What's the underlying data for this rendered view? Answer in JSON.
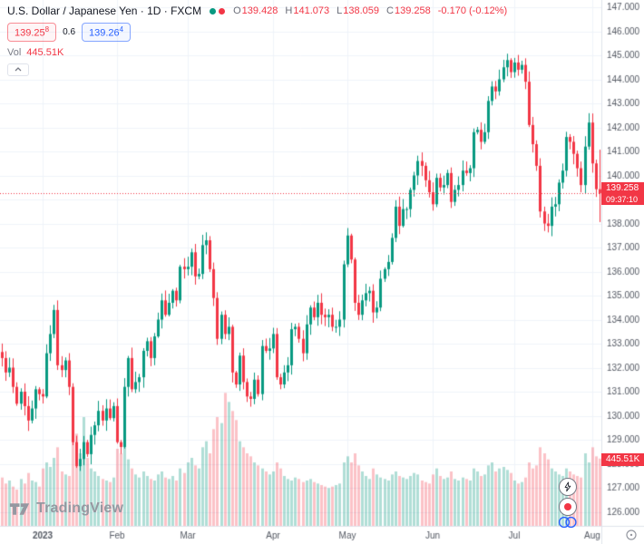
{
  "legend": {
    "title": "U.S. Dollar / Japanese Yen · 1D · FXCM",
    "ohlc": [
      {
        "label": "O",
        "value": "139.428"
      },
      {
        "label": "H",
        "value": "141.073"
      },
      {
        "label": "L",
        "value": "138.059"
      },
      {
        "label": "C",
        "value": "139.258"
      }
    ],
    "change": "-0.170 (-0.12%)"
  },
  "quote": {
    "sell": "139.25",
    "sell_sup": "8",
    "spread": "0.6",
    "buy": "139.26",
    "buy_sup": "4"
  },
  "volume_row": {
    "label": "Vol",
    "value": "445.51K"
  },
  "axis": {
    "price_label": "139.258",
    "countdown": "09:37:10",
    "volume_label": "445.51K"
  },
  "watermark": {
    "text": "TradingView"
  },
  "chart_data": {
    "type": "candlestick",
    "symbol": "USD/JPY",
    "timeframe": "1D",
    "volume_overlay": true,
    "grid": true,
    "y_axis": {
      "min": 126,
      "max": 147,
      "step": 1
    },
    "y_tick_labels": [
      "147.000",
      "146.000",
      "145.000",
      "144.000",
      "143.000",
      "142.000",
      "141.000",
      "140.000",
      "139.000",
      "138.000",
      "137.000",
      "136.000",
      "135.000",
      "134.000",
      "133.000",
      "132.000",
      "131.000",
      "130.000",
      "129.000",
      "128.000",
      "127.000",
      "126.000"
    ],
    "x_ticks": [
      {
        "label": "2023",
        "i": 11
      },
      {
        "label": "Feb",
        "i": 31
      },
      {
        "label": "Mar",
        "i": 50
      },
      {
        "label": "Apr",
        "i": 73
      },
      {
        "label": "May",
        "i": 93
      },
      {
        "label": "Jun",
        "i": 116
      },
      {
        "label": "Jul",
        "i": 138
      },
      {
        "label": "Aug",
        "i": 159
      }
    ],
    "last_price": 139.258,
    "last_candle": {
      "o": 139.428,
      "h": 141.073,
      "l": 138.059,
      "c": 139.258,
      "v": 445.51
    },
    "volume_axis_max_k": 900,
    "colors": {
      "up": "#089981",
      "down": "#F23645"
    },
    "candles": [
      [
        132.4,
        320
      ],
      [
        131.8,
        280
      ],
      [
        132.0,
        300
      ],
      [
        131.2,
        260
      ],
      [
        130.5,
        240
      ],
      [
        131.0,
        310
      ],
      [
        130.4,
        280
      ],
      [
        129.8,
        350
      ],
      [
        130.3,
        300
      ],
      [
        131.1,
        290
      ],
      [
        130.9,
        260
      ],
      [
        130.8,
        380
      ],
      [
        132.6,
        420
      ],
      [
        133.4,
        390
      ],
      [
        134.4,
        450
      ],
      [
        132.1,
        520
      ],
      [
        131.9,
        360
      ],
      [
        132.3,
        340
      ],
      [
        131.2,
        330
      ],
      [
        128.9,
        560
      ],
      [
        127.9,
        610
      ],
      [
        128.2,
        480
      ],
      [
        128.9,
        720
      ],
      [
        128.4,
        450
      ],
      [
        129.2,
        380
      ],
      [
        129.6,
        360
      ],
      [
        130.2,
        330
      ],
      [
        129.8,
        310
      ],
      [
        130.3,
        300
      ],
      [
        129.9,
        290
      ],
      [
        130.4,
        320
      ],
      [
        128.9,
        510
      ],
      [
        128.7,
        480
      ],
      [
        131.2,
        620
      ],
      [
        132.4,
        440
      ],
      [
        131.1,
        380
      ],
      [
        131.4,
        340
      ],
      [
        131.6,
        320
      ],
      [
        132.7,
        360
      ],
      [
        133.1,
        330
      ],
      [
        132.4,
        310
      ],
      [
        133.3,
        300
      ],
      [
        134.0,
        340
      ],
      [
        134.8,
        360
      ],
      [
        134.2,
        320
      ],
      [
        134.7,
        310
      ],
      [
        135.2,
        330
      ],
      [
        134.8,
        300
      ],
      [
        136.2,
        380
      ],
      [
        136.1,
        350
      ],
      [
        136.2,
        420
      ],
      [
        136.8,
        450
      ],
      [
        135.8,
        400
      ],
      [
        135.9,
        380
      ],
      [
        137.1,
        520
      ],
      [
        137.3,
        560
      ],
      [
        136.1,
        480
      ],
      [
        134.9,
        640
      ],
      [
        133.2,
        720
      ],
      [
        134.2,
        680
      ],
      [
        133.4,
        880
      ],
      [
        133.7,
        820
      ],
      [
        131.8,
        760
      ],
      [
        131.3,
        700
      ],
      [
        132.5,
        560
      ],
      [
        131.4,
        520
      ],
      [
        130.8,
        480
      ],
      [
        130.7,
        460
      ],
      [
        131.5,
        420
      ],
      [
        130.9,
        400
      ],
      [
        132.9,
        380
      ],
      [
        132.7,
        360
      ],
      [
        132.8,
        340
      ],
      [
        133.4,
        360
      ],
      [
        131.6,
        420
      ],
      [
        131.3,
        380
      ],
      [
        131.8,
        330
      ],
      [
        132.1,
        310
      ],
      [
        133.6,
        300
      ],
      [
        133.7,
        320
      ],
      [
        133.2,
        310
      ],
      [
        132.6,
        290
      ],
      [
        133.8,
        300
      ],
      [
        134.5,
        310
      ],
      [
        134.1,
        290
      ],
      [
        134.7,
        280
      ],
      [
        134.2,
        270
      ],
      [
        134.1,
        260
      ],
      [
        134.2,
        250
      ],
      [
        133.7,
        260
      ],
      [
        133.7,
        270
      ],
      [
        134.0,
        280
      ],
      [
        136.3,
        420
      ],
      [
        137.5,
        460
      ],
      [
        136.5,
        420
      ],
      [
        134.7,
        480
      ],
      [
        134.2,
        400
      ],
      [
        134.8,
        360
      ],
      [
        135.1,
        330
      ],
      [
        135.2,
        310
      ],
      [
        134.3,
        380
      ],
      [
        134.5,
        340
      ],
      [
        135.7,
        320
      ],
      [
        136.1,
        310
      ],
      [
        136.4,
        300
      ],
      [
        137.4,
        340
      ],
      [
        138.7,
        360
      ],
      [
        137.9,
        330
      ],
      [
        138.6,
        320
      ],
      [
        138.6,
        310
      ],
      [
        139.4,
        330
      ],
      [
        140.0,
        350
      ],
      [
        140.6,
        340
      ],
      [
        140.4,
        300
      ],
      [
        139.8,
        290
      ],
      [
        139.3,
        280
      ],
      [
        138.8,
        340
      ],
      [
        139.9,
        380
      ],
      [
        139.5,
        330
      ],
      [
        139.6,
        310
      ],
      [
        140.1,
        320
      ],
      [
        138.9,
        360
      ],
      [
        139.4,
        310
      ],
      [
        139.6,
        300
      ],
      [
        140.2,
        320
      ],
      [
        140.1,
        310
      ],
      [
        140.3,
        300
      ],
      [
        141.8,
        380
      ],
      [
        141.9,
        360
      ],
      [
        141.4,
        330
      ],
      [
        141.8,
        340
      ],
      [
        143.1,
        400
      ],
      [
        143.7,
        420
      ],
      [
        143.5,
        360
      ],
      [
        144.0,
        380
      ],
      [
        144.5,
        390
      ],
      [
        144.8,
        370
      ],
      [
        144.3,
        350
      ],
      [
        144.7,
        300
      ],
      [
        144.4,
        280
      ],
      [
        144.6,
        290
      ],
      [
        143.9,
        320
      ],
      [
        142.1,
        420
      ],
      [
        141.3,
        380
      ],
      [
        140.4,
        400
      ],
      [
        138.5,
        520
      ],
      [
        138.0,
        480
      ],
      [
        137.9,
        440
      ],
      [
        138.7,
        380
      ],
      [
        138.8,
        360
      ],
      [
        139.7,
        340
      ],
      [
        140.2,
        330
      ],
      [
        141.6,
        380
      ],
      [
        141.4,
        360
      ],
      [
        140.9,
        340
      ],
      [
        140.3,
        330
      ],
      [
        139.6,
        320
      ],
      [
        141.2,
        480
      ],
      [
        142.2,
        420
      ],
      [
        140.5,
        520
      ],
      [
        139.428,
        460
      ],
      [
        139.258,
        445.51
      ]
    ]
  }
}
